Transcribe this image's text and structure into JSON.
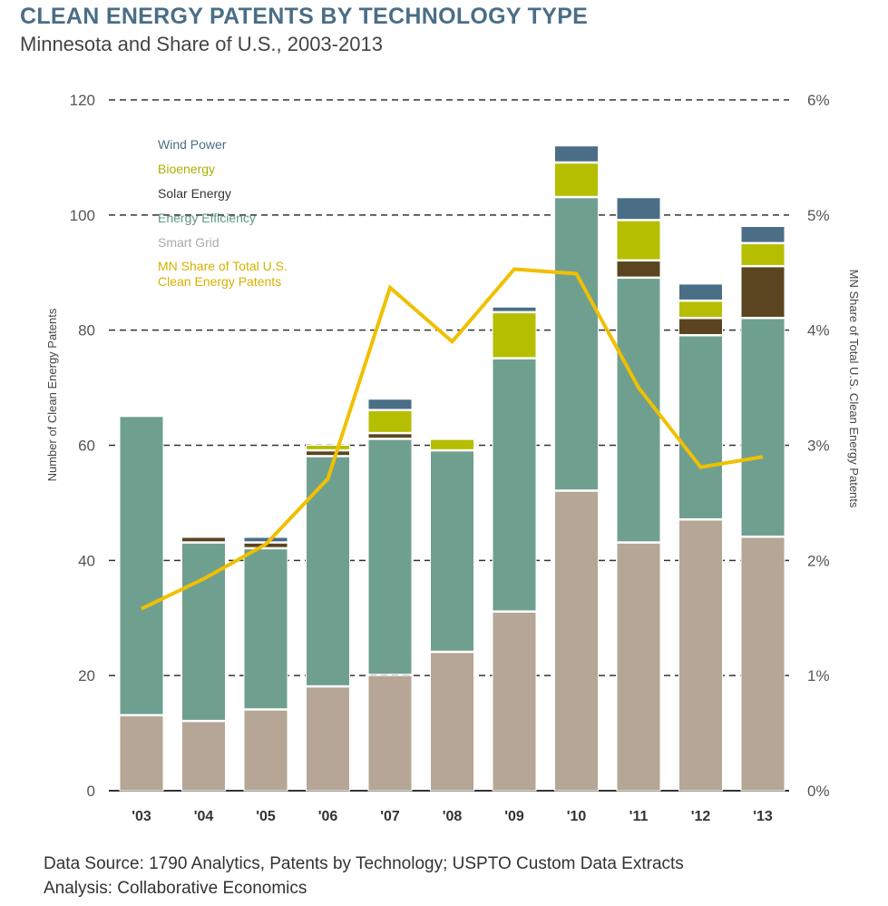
{
  "title": "CLEAN ENERGY PATENTS BY TECHNOLOGY TYPE",
  "subtitle": "Minnesota and Share of U.S., 2003-2013",
  "source_lines": [
    "Data Source: 1790 Analytics, Patents by Technology; USPTO Custom Data Extracts",
    "Analysis: Collaborative Economics"
  ],
  "chart_data": {
    "type": "bar",
    "stacked": true,
    "title": "CLEAN ENERGY PATENTS BY TECHNOLOGY TYPE",
    "categories": [
      "'03",
      "'04",
      "'05",
      "'06",
      "'07",
      "'08",
      "'09",
      "'10",
      "'11",
      "'12",
      "'13"
    ],
    "ylabel": "Number of Clean Energy Patents",
    "y2label": "MN Share of Total U.S. Clean Energy Patents",
    "ylim": [
      0,
      120
    ],
    "yticks": [
      "0",
      "20",
      "40",
      "60",
      "80",
      "100",
      "120"
    ],
    "y2lim": [
      0,
      6
    ],
    "y2ticks": [
      "0%",
      "1%",
      "2%",
      "3%",
      "4%",
      "5%",
      "6%"
    ],
    "grid": "dashed horizontal",
    "legend": "top-left",
    "series": [
      {
        "name": "Smart Grid",
        "color": "#b5a696",
        "values": [
          13,
          12,
          14,
          18,
          20,
          24,
          31,
          52,
          43,
          47,
          44
        ]
      },
      {
        "name": "Energy Efficiency",
        "color": "#6fa08f",
        "values": [
          52,
          31,
          28,
          40,
          41,
          35,
          44,
          51,
          46,
          32,
          38
        ]
      },
      {
        "name": "Solar Energy",
        "color": "#5a4520",
        "values": [
          0,
          1,
          1,
          1,
          1,
          0,
          0,
          0,
          3,
          3,
          9
        ]
      },
      {
        "name": "Bioenergy",
        "color": "#b5be00",
        "values": [
          0,
          0,
          0,
          1,
          4,
          2,
          8,
          6,
          7,
          3,
          4
        ]
      },
      {
        "name": "Wind Power",
        "color": "#4b6e87",
        "values": [
          0,
          0,
          1,
          0,
          2,
          0,
          1,
          3,
          4,
          3,
          3
        ]
      }
    ],
    "line": {
      "name": "MN Share of Total U.S. Clean Energy Patents",
      "color": "#f0c000",
      "axis": "right",
      "values": [
        1.58,
        1.84,
        2.14,
        2.71,
        4.37,
        3.9,
        4.53,
        4.49,
        3.5,
        2.81,
        2.9
      ]
    },
    "legend_order": [
      "Wind Power",
      "Bioenergy",
      "Solar Energy",
      "Energy Efficiency",
      "Smart Grid",
      "MN Share of Total U.S. Clean Energy Patents"
    ],
    "legend_line_labels": [
      "MN Share of Total U.S.",
      "Clean Energy Patents"
    ]
  }
}
